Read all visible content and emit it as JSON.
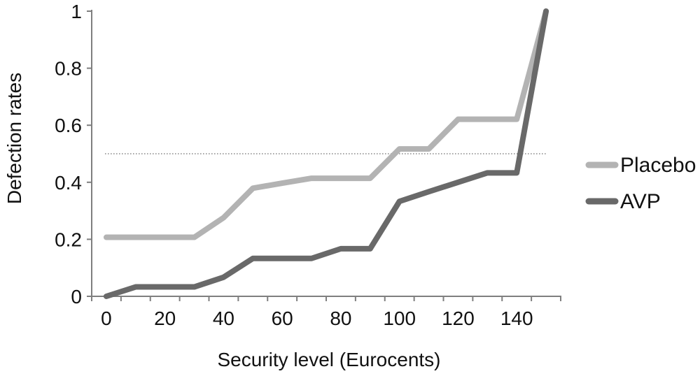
{
  "chart_data": {
    "type": "line",
    "title": "",
    "xlabel": "Security level (Eurocents)",
    "ylabel": "Defection rates",
    "x": [
      0,
      10,
      20,
      30,
      40,
      50,
      60,
      70,
      80,
      90,
      100,
      110,
      120,
      130,
      140,
      150
    ],
    "xtick_labels": [
      "0",
      "20",
      "40",
      "60",
      "80",
      "100",
      "120",
      "140"
    ],
    "xtick_label_positions": [
      0,
      20,
      40,
      60,
      80,
      100,
      120,
      140
    ],
    "ytick_labels": [
      "0",
      "0.2",
      "0.4",
      "0.6",
      "0.8",
      "1"
    ],
    "ytick_values": [
      0,
      0.2,
      0.4,
      0.6,
      0.8,
      1
    ],
    "xlim": [
      0,
      150
    ],
    "ylim": [
      0,
      1
    ],
    "grid": false,
    "legend_position": "right",
    "reference_line": {
      "y": 0.5,
      "style": "dotted",
      "color": "#8c8c8c"
    },
    "axis_color": "#7f7f7f",
    "series": [
      {
        "name": "Placebo",
        "color": "#b3b3b3",
        "values": [
          0.207,
          0.207,
          0.207,
          0.207,
          0.276,
          0.379,
          0.397,
          0.414,
          0.414,
          0.414,
          0.517,
          0.517,
          0.621,
          0.621,
          0.621,
          1.0
        ]
      },
      {
        "name": "AVP",
        "color": "#696969",
        "values": [
          0.0,
          0.033,
          0.033,
          0.033,
          0.067,
          0.133,
          0.133,
          0.133,
          0.167,
          0.167,
          0.333,
          0.367,
          0.4,
          0.433,
          0.433,
          1.0
        ]
      }
    ]
  }
}
